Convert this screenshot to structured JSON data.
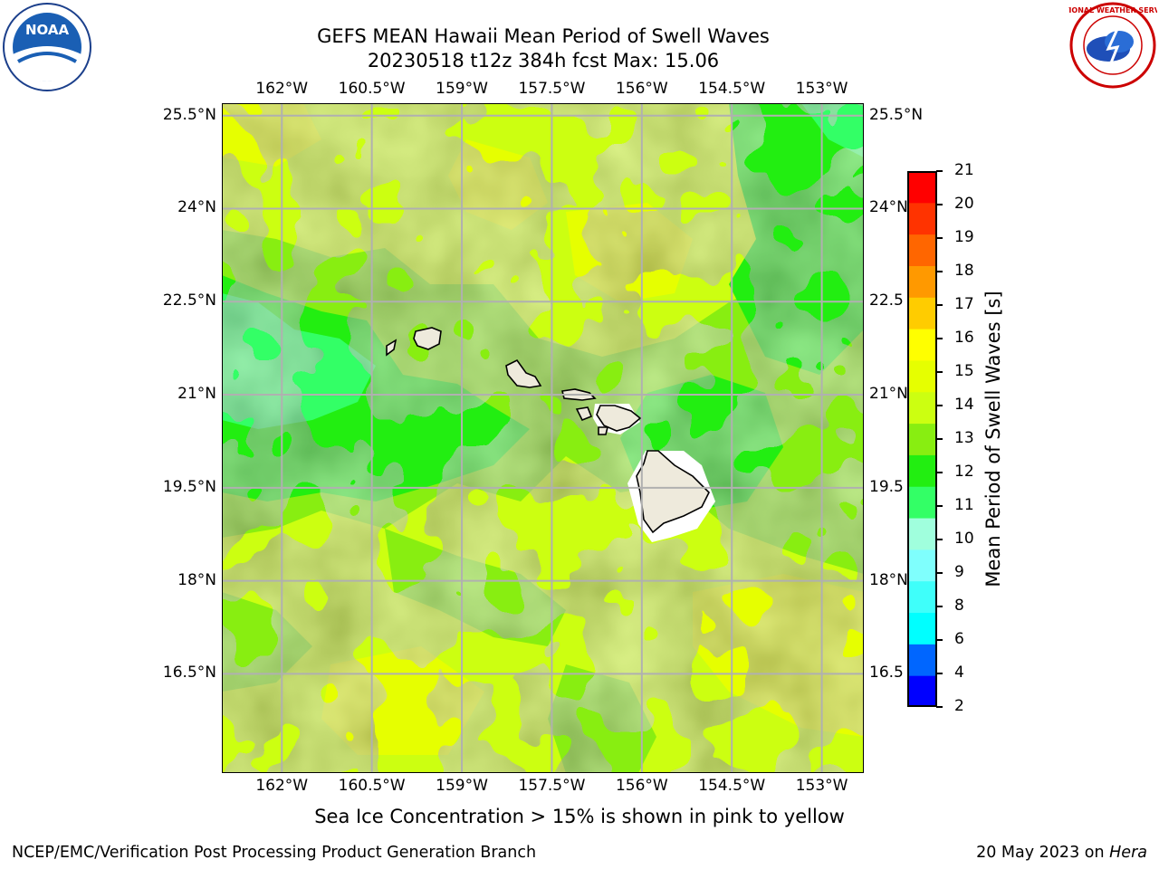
{
  "header": {
    "title": "GEFS MEAN Hawaii Mean Period of Swell Waves",
    "subtitle": "20230518 t12z 384h fcst   Max: 15.06"
  },
  "logos": {
    "left": {
      "text": "NOAA",
      "icon": "noaa-logo"
    },
    "right": {
      "text": "NATIONAL WEATHER SERVICE",
      "icon": "nws-logo"
    }
  },
  "map": {
    "lon_labels": [
      "162°W",
      "160.5°W",
      "159°W",
      "157.5°W",
      "156°W",
      "154.5°W",
      "153°W"
    ],
    "lat_labels_left": [
      "25.5°N",
      "24°N",
      "22.5°N",
      "21°N",
      "19.5°N",
      "18°N",
      "16.5°N"
    ],
    "lat_labels_right": [
      "25.5°N",
      "24°N",
      "22.5",
      "21°N",
      "19.5",
      "18°N",
      "16.5"
    ],
    "lon_values": [
      -162,
      -160.5,
      -159,
      -157.5,
      -156,
      -154.5,
      -153
    ],
    "lat_values": [
      25.5,
      24,
      22.5,
      21,
      19.5,
      18,
      16.5
    ],
    "lon_range": [
      -163,
      -152.3
    ],
    "lat_range": [
      14.9,
      25.7
    ],
    "grid": true
  },
  "colorbar": {
    "label": "Mean Period of Swell Waves [s]",
    "ticks": [
      "21",
      "20",
      "19",
      "18",
      "17",
      "16",
      "15",
      "14",
      "13",
      "12",
      "11",
      "10",
      "9",
      "8",
      "6",
      "4",
      "2"
    ],
    "levels": [
      2,
      4,
      6,
      8,
      9,
      10,
      11,
      12,
      13,
      14,
      15,
      16,
      17,
      18,
      19,
      20,
      21
    ],
    "colors": [
      "#0000ff",
      "#0066ff",
      "#00ffff",
      "#3ffffa",
      "#7ffffd",
      "#a0ffdd",
      "#33ff66",
      "#22ee11",
      "#88ee11",
      "#ccff11",
      "#e6ff00",
      "#ffff00",
      "#ffcc00",
      "#ff9900",
      "#ff6600",
      "#ff3300",
      "#ff0000"
    ]
  },
  "footer": {
    "note": "Sea Ice Concentration > 15% is shown in pink to yellow",
    "credit": "NCEP/EMC/Verification Post Processing Product Generation Branch",
    "date": "20 May 2023 on ",
    "machine": "Hera"
  }
}
